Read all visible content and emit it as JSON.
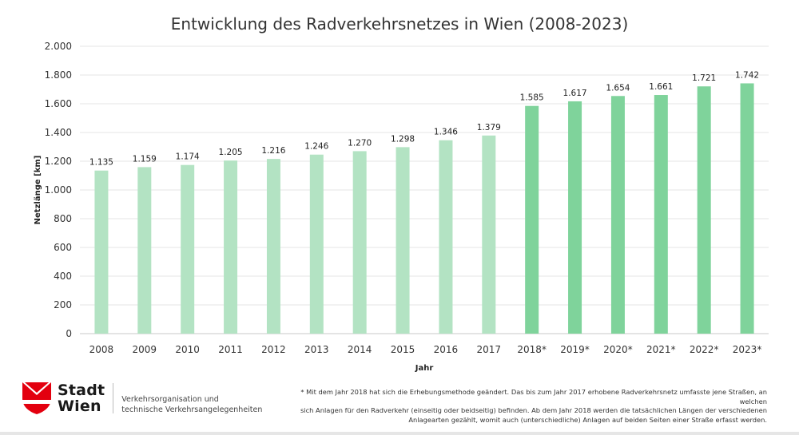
{
  "chart_data": {
    "type": "bar",
    "title": "Entwicklung des Radverkehrsnetzes in Wien (2008-2023)",
    "xlabel": "Jahr",
    "ylabel": "Netzlänge [km]",
    "ylim": [
      0,
      2000
    ],
    "yticks": [
      0,
      200,
      400,
      600,
      800,
      1000,
      1200,
      1400,
      1600,
      1800,
      2000
    ],
    "ytick_labels": [
      "0",
      "200",
      "400",
      "600",
      "800",
      "1.000",
      "1.200",
      "1.400",
      "1.600",
      "1.800",
      "2.000"
    ],
    "grid": true,
    "categories": [
      "2008",
      "2009",
      "2010",
      "2011",
      "2012",
      "2013",
      "2014",
      "2015",
      "2016",
      "2017",
      "2018*",
      "2019*",
      "2020*",
      "2021*",
      "2022*",
      "2023*"
    ],
    "values": [
      1135,
      1159,
      1174,
      1205,
      1216,
      1246,
      1270,
      1298,
      1346,
      1379,
      1585,
      1617,
      1654,
      1661,
      1721,
      1742
    ],
    "value_labels": [
      "1.135",
      "1.159",
      "1.174",
      "1.205",
      "1.216",
      "1.246",
      "1.270",
      "1.298",
      "1.346",
      "1.379",
      "1.585",
      "1.617",
      "1.654",
      "1.661",
      "1.721",
      "1.742"
    ],
    "colors": {
      "before_2018": "#b3e3c3",
      "from_2018": "#7fd39b"
    }
  },
  "logo": {
    "line1": "Stadt",
    "line2": "Wien"
  },
  "department": {
    "line1": "Verkehrsorganisation und",
    "line2": "technische Verkehrsangelegenheiten"
  },
  "footnote": {
    "line1": "* Mit dem Jahr 2018 hat sich die Erhebungsmethode geändert. Das bis zum Jahr 2017 erhobene Radverkehrsnetz umfasste jene Straßen, an welchen",
    "line2": "sich Anlagen für den Radverkehr (einseitig oder beidseitig) befinden. Ab dem Jahr 2018 werden die tatsächlichen Längen der verschiedenen",
    "line3": "Anlagearten gezählt, womit auch (unterschiedliche) Anlagen auf beiden Seiten einer Straße erfasst werden."
  },
  "colors": {
    "brand_red": "#e3000f",
    "text": "#333333",
    "grid": "#e6e6e6"
  }
}
